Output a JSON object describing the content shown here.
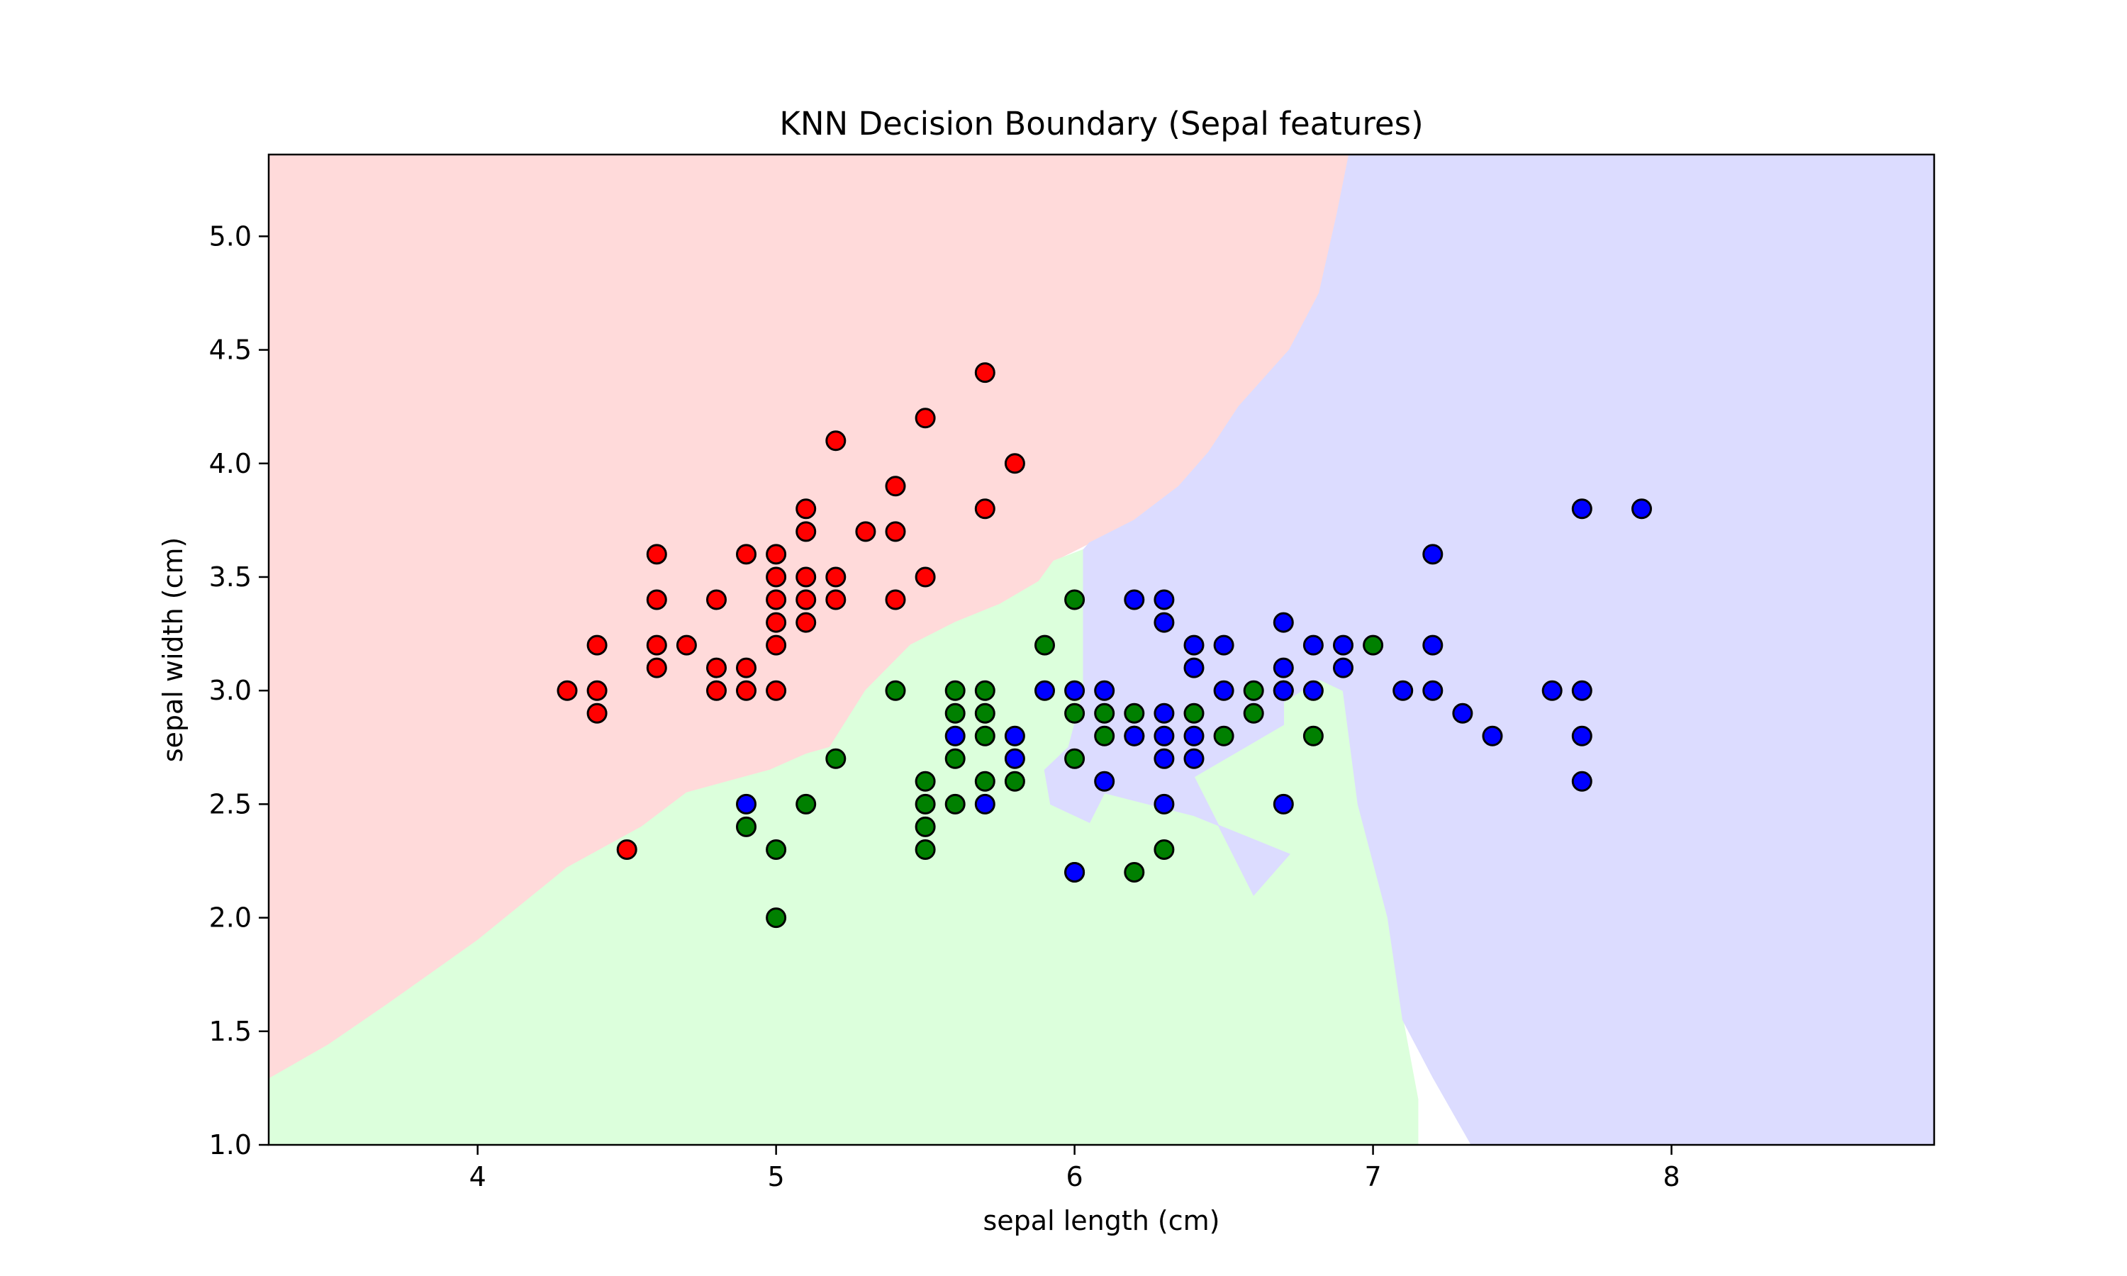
{
  "chart_data": {
    "type": "scatter",
    "title": "KNN Decision Boundary (Sepal features)",
    "xlabel": "sepal length (cm)",
    "ylabel": "sepal width (cm)",
    "xlim": [
      3.3,
      8.88
    ],
    "ylim": [
      1.0,
      5.36
    ],
    "xticks": [
      4,
      5,
      6,
      7,
      8
    ],
    "yticks": [
      1.0,
      1.5,
      2.0,
      2.5,
      3.0,
      3.5,
      4.0,
      4.5,
      5.0
    ],
    "grid": false,
    "legend": "none",
    "colors": {
      "setosa_point": "#ff0000",
      "versicolor_point": "#008000",
      "virginica_point": "#0000ff",
      "setosa_region": "#ffdada",
      "versicolor_region": "#dcffdc",
      "virginica_region": "#dcdcff",
      "point_edge": "#000000"
    },
    "regions": [
      {
        "class": "red",
        "polygon": [
          [
            3.3,
            1.29
          ],
          [
            3.3,
            5.36
          ],
          [
            6.92,
            5.36
          ],
          [
            6.88,
            5.1
          ],
          [
            6.82,
            4.75
          ],
          [
            6.72,
            4.5
          ],
          [
            6.55,
            4.25
          ],
          [
            6.45,
            4.05
          ],
          [
            6.35,
            3.9
          ],
          [
            6.2,
            3.75
          ],
          [
            6.05,
            3.65
          ],
          [
            5.93,
            3.57
          ],
          [
            5.88,
            3.48
          ],
          [
            5.75,
            3.38
          ],
          [
            5.6,
            3.3
          ],
          [
            5.45,
            3.2
          ],
          [
            5.3,
            3.0
          ],
          [
            5.18,
            2.75
          ],
          [
            5.1,
            2.72
          ],
          [
            4.98,
            2.65
          ],
          [
            4.7,
            2.55
          ],
          [
            4.55,
            2.4
          ],
          [
            4.3,
            2.22
          ],
          [
            4.0,
            1.9
          ],
          [
            3.7,
            1.62
          ],
          [
            3.5,
            1.44
          ]
        ]
      },
      {
        "class": "green",
        "polygon": [
          [
            3.3,
            1.0
          ],
          [
            3.3,
            1.29
          ],
          [
            3.5,
            1.44
          ],
          [
            3.7,
            1.62
          ],
          [
            4.0,
            1.9
          ],
          [
            4.3,
            2.22
          ],
          [
            4.55,
            2.4
          ],
          [
            4.7,
            2.55
          ],
          [
            4.98,
            2.65
          ],
          [
            5.1,
            2.72
          ],
          [
            5.18,
            2.75
          ],
          [
            5.3,
            3.0
          ],
          [
            5.45,
            3.2
          ],
          [
            5.6,
            3.3
          ],
          [
            5.75,
            3.38
          ],
          [
            5.88,
            3.48
          ],
          [
            5.93,
            3.57
          ],
          [
            6.03,
            3.62
          ],
          [
            6.03,
            3.0
          ],
          [
            5.98,
            2.75
          ],
          [
            5.9,
            2.65
          ],
          [
            5.92,
            2.5
          ],
          [
            6.05,
            2.42
          ],
          [
            6.1,
            2.55
          ],
          [
            6.4,
            2.45
          ],
          [
            6.72,
            2.28
          ],
          [
            6.6,
            2.1
          ],
          [
            6.4,
            2.62
          ],
          [
            6.7,
            2.85
          ],
          [
            6.7,
            2.95
          ],
          [
            6.82,
            3.05
          ],
          [
            6.9,
            3.0
          ],
          [
            6.95,
            2.5
          ],
          [
            7.05,
            2.0
          ],
          [
            7.1,
            1.55
          ],
          [
            7.15,
            1.2
          ],
          [
            7.15,
            1.0
          ]
        ]
      },
      {
        "class": "blue",
        "polygon": [
          [
            6.92,
            5.36
          ],
          [
            8.88,
            5.36
          ],
          [
            8.88,
            1.0
          ],
          [
            7.33,
            1.0
          ],
          [
            7.2,
            1.3
          ],
          [
            7.1,
            1.55
          ],
          [
            7.05,
            2.0
          ],
          [
            6.95,
            2.5
          ],
          [
            6.9,
            3.0
          ],
          [
            6.82,
            3.05
          ],
          [
            6.7,
            2.95
          ],
          [
            6.7,
            2.85
          ],
          [
            6.4,
            2.62
          ],
          [
            6.6,
            2.1
          ],
          [
            6.72,
            2.28
          ],
          [
            6.4,
            2.45
          ],
          [
            6.1,
            2.55
          ],
          [
            6.05,
            2.42
          ],
          [
            5.92,
            2.5
          ],
          [
            5.9,
            2.65
          ],
          [
            5.98,
            2.75
          ],
          [
            6.03,
            3.0
          ],
          [
            6.03,
            3.62
          ],
          [
            6.05,
            3.65
          ],
          [
            6.2,
            3.75
          ],
          [
            6.35,
            3.9
          ],
          [
            6.45,
            4.05
          ],
          [
            6.55,
            4.25
          ],
          [
            6.72,
            4.5
          ],
          [
            6.82,
            4.75
          ],
          [
            6.88,
            5.1
          ]
        ]
      }
    ],
    "series": [
      {
        "class": "red",
        "points": [
          [
            4.3,
            3.0
          ],
          [
            4.4,
            3.2
          ],
          [
            4.4,
            3.0
          ],
          [
            4.4,
            2.9
          ],
          [
            4.5,
            2.3
          ],
          [
            4.6,
            3.6
          ],
          [
            4.6,
            3.4
          ],
          [
            4.6,
            3.2
          ],
          [
            4.6,
            3.1
          ],
          [
            4.7,
            3.2
          ],
          [
            4.8,
            3.4
          ],
          [
            4.8,
            3.1
          ],
          [
            4.8,
            3.0
          ],
          [
            4.9,
            3.6
          ],
          [
            4.9,
            3.1
          ],
          [
            4.9,
            3.0
          ],
          [
            5.0,
            3.6
          ],
          [
            5.0,
            3.5
          ],
          [
            5.0,
            3.4
          ],
          [
            5.0,
            3.3
          ],
          [
            5.0,
            3.2
          ],
          [
            5.0,
            3.0
          ],
          [
            5.1,
            3.8
          ],
          [
            5.1,
            3.7
          ],
          [
            5.1,
            3.5
          ],
          [
            5.1,
            3.4
          ],
          [
            5.1,
            3.3
          ],
          [
            5.2,
            4.1
          ],
          [
            5.2,
            3.5
          ],
          [
            5.2,
            3.4
          ],
          [
            5.3,
            3.7
          ],
          [
            5.4,
            3.9
          ],
          [
            5.4,
            3.7
          ],
          [
            5.4,
            3.4
          ],
          [
            5.5,
            4.2
          ],
          [
            5.5,
            3.5
          ],
          [
            5.7,
            4.4
          ],
          [
            5.7,
            3.8
          ],
          [
            5.8,
            4.0
          ]
        ]
      },
      {
        "class": "green",
        "points": [
          [
            4.9,
            2.4
          ],
          [
            5.0,
            2.3
          ],
          [
            5.0,
            2.0
          ],
          [
            5.1,
            2.5
          ],
          [
            5.2,
            2.7
          ],
          [
            5.4,
            3.0
          ],
          [
            5.5,
            2.6
          ],
          [
            5.5,
            2.5
          ],
          [
            5.5,
            2.4
          ],
          [
            5.5,
            2.3
          ],
          [
            5.6,
            3.0
          ],
          [
            5.6,
            2.9
          ],
          [
            5.6,
            2.7
          ],
          [
            5.6,
            2.5
          ],
          [
            5.7,
            3.0
          ],
          [
            5.7,
            2.9
          ],
          [
            5.7,
            2.8
          ],
          [
            5.7,
            2.6
          ],
          [
            5.8,
            2.6
          ],
          [
            5.9,
            3.2
          ],
          [
            6.0,
            3.4
          ],
          [
            6.0,
            2.9
          ],
          [
            6.0,
            2.7
          ],
          [
            6.0,
            2.2
          ],
          [
            6.1,
            2.9
          ],
          [
            6.1,
            2.8
          ],
          [
            6.2,
            2.9
          ],
          [
            6.2,
            2.2
          ],
          [
            6.3,
            2.3
          ],
          [
            6.4,
            2.9
          ],
          [
            6.5,
            2.8
          ],
          [
            6.6,
            3.0
          ],
          [
            6.6,
            2.9
          ],
          [
            6.7,
            3.0
          ],
          [
            6.8,
            2.8
          ],
          [
            7.0,
            3.2
          ],
          [
            6.2,
            2.8
          ]
        ]
      },
      {
        "class": "blue",
        "points": [
          [
            4.9,
            2.5
          ],
          [
            5.6,
            2.8
          ],
          [
            5.7,
            2.5
          ],
          [
            5.8,
            2.8
          ],
          [
            5.8,
            2.7
          ],
          [
            5.9,
            3.0
          ],
          [
            6.0,
            3.0
          ],
          [
            6.0,
            2.2
          ],
          [
            6.1,
            3.0
          ],
          [
            6.1,
            2.6
          ],
          [
            6.2,
            3.4
          ],
          [
            6.2,
            2.8
          ],
          [
            6.3,
            3.4
          ],
          [
            6.3,
            3.3
          ],
          [
            6.3,
            2.9
          ],
          [
            6.3,
            2.8
          ],
          [
            6.3,
            2.7
          ],
          [
            6.3,
            2.5
          ],
          [
            6.4,
            3.2
          ],
          [
            6.4,
            3.1
          ],
          [
            6.4,
            2.8
          ],
          [
            6.4,
            2.7
          ],
          [
            6.5,
            3.2
          ],
          [
            6.5,
            3.0
          ],
          [
            6.7,
            3.3
          ],
          [
            6.7,
            3.1
          ],
          [
            6.7,
            3.0
          ],
          [
            6.7,
            2.5
          ],
          [
            6.8,
            3.2
          ],
          [
            6.8,
            3.0
          ],
          [
            6.9,
            3.2
          ],
          [
            6.9,
            3.1
          ],
          [
            7.1,
            3.0
          ],
          [
            7.2,
            3.6
          ],
          [
            7.2,
            3.2
          ],
          [
            7.2,
            3.0
          ],
          [
            7.3,
            2.9
          ],
          [
            7.4,
            2.8
          ],
          [
            7.6,
            3.0
          ],
          [
            7.7,
            3.8
          ],
          [
            7.7,
            3.0
          ],
          [
            7.7,
            2.8
          ],
          [
            7.7,
            2.6
          ],
          [
            7.9,
            3.8
          ]
        ]
      }
    ]
  }
}
